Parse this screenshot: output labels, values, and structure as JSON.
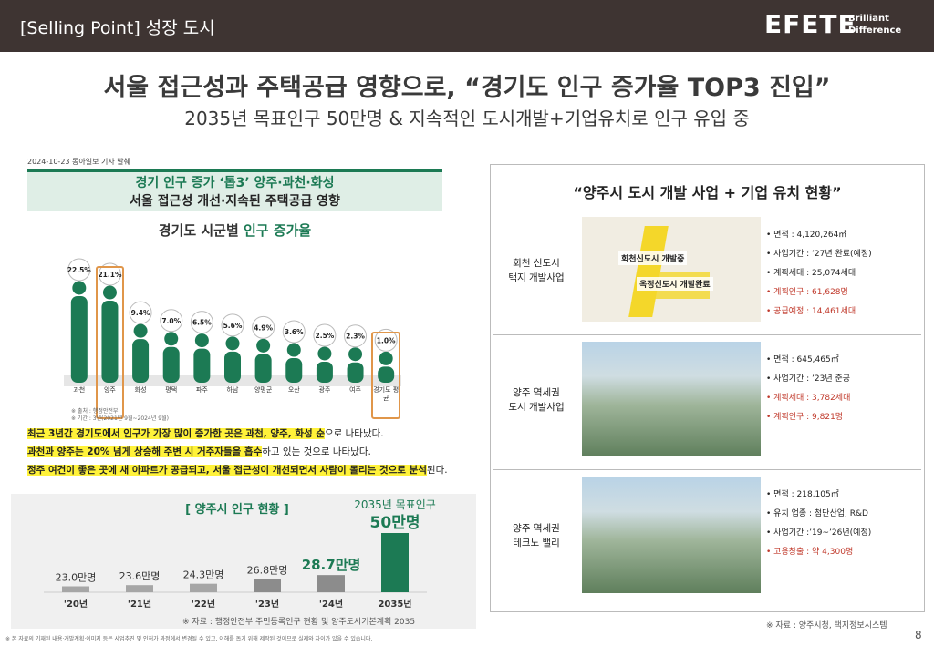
{
  "header": {
    "section": "[Selling Point] 성장 도시",
    "logo": "EFETE",
    "logo_tagline": [
      "Brilliant",
      "Difference"
    ]
  },
  "title": "서울 접근성과 주택공급 영향으로, “경기도 인구 증가율 TOP3 진입”",
  "subtitle": "2035년 목표인구 50만명 & 지속적인 도시개발+기업유치로 인구 유입 중",
  "article": {
    "source": "2024-10-23 동아일보 기사 발췌",
    "headline": [
      "경기 인구 증가 ‘톱3’ 양주·과천·화성",
      "서울 접근성 개선·지속된 주택공급 영향"
    ],
    "notes": [
      "※ 출처 : 행정안전부",
      "※ 기간 : 3년(2021년 9월~2024년 9월)"
    ],
    "paragraph": [
      [
        {
          "text": "최근 3년간 경기도에서 인구가 가장 많이 증가한 곳은 과천, 양주, 화성 순",
          "mark": true
        },
        {
          "text": "으로 나타났다.",
          "mark": false
        }
      ],
      [
        {
          "text": "과천과 양주는 20% 넘게 상승해 주변 시 거주자들을 흡수",
          "mark": true
        },
        {
          "text": "하고 있는 것으로 나타났다.",
          "mark": false
        }
      ],
      [
        {
          "text": "정주 여건이 좋은 곳에 새 아파트가 공급되고, 서울 접근성이 개선되면서 사람이 몰리는 것으로 분석",
          "mark": true
        },
        {
          "text": "된다.",
          "mark": false
        }
      ]
    ]
  },
  "chart_data": [
    {
      "type": "pictogram",
      "title_parts": [
        "경기도 시군별 ",
        "인구 증가율"
      ],
      "categories": [
        "과천",
        "양주",
        "화성",
        "평택",
        "파주",
        "하남",
        "양평군",
        "오산",
        "광주",
        "여주",
        "경기도 평균"
      ],
      "values": [
        22.5,
        21.1,
        9.4,
        7.0,
        6.5,
        5.6,
        4.9,
        3.6,
        2.5,
        2.3,
        1.0
      ],
      "value_labels": [
        "22.5%",
        "21.1%",
        "9.4%",
        "7.0%",
        "6.5%",
        "5.6%",
        "4.9%",
        "3.6%",
        "2.5%",
        "2.3%",
        "1.0%"
      ],
      "color": "#1c7a54",
      "highlight": [
        1,
        10
      ],
      "highlight_color": "#e0964a"
    },
    {
      "type": "bar",
      "title": "[ 양주시 인구 현황 ]",
      "categories": [
        "'20년",
        "'21년",
        "'22년",
        "'23년",
        "'24년",
        "2035년"
      ],
      "values": [
        23.0,
        23.6,
        24.3,
        26.8,
        28.7,
        50
      ],
      "value_labels": [
        "23.0만명",
        "23.6만명",
        "24.3만명",
        "26.8만명",
        "28.7만명",
        "50만명"
      ],
      "colors": [
        "#a6a6a6",
        "#a6a6a6",
        "#a6a6a6",
        "#8c8c8c",
        "#8c8c8c",
        "#1c7a54"
      ],
      "emphasis": [
        4,
        5
      ],
      "annotation": {
        "index": 5,
        "text": "2035년 목표인구"
      },
      "ylim": [
        20,
        50
      ],
      "note": "※ 자료 : 행정안전부 주민등록인구 현황 및 양주도시기본계획 2035"
    }
  ],
  "projects": {
    "title": "“양주시 도시 개발 사업  + 기업 유치 현황”",
    "rows": [
      {
        "name": [
          "회천 신도시",
          "택지 개발사업"
        ],
        "map_labels": [
          "회천신도시 개발중",
          "옥정신도시 개발완료"
        ],
        "items": [
          {
            "text": "면적 : 4,120,264㎡",
            "accent": false
          },
          {
            "text": "사업기간 : ’27년 완료(예정)",
            "accent": false
          },
          {
            "text": "계획세대 : 25,074세대",
            "accent": false
          },
          {
            "text": "계획인구 : 61,628명",
            "accent": true
          },
          {
            "text": "공급예정 : 14,461세대",
            "accent": true
          }
        ]
      },
      {
        "name": [
          "양주 역세권",
          "도시 개발사업"
        ],
        "items": [
          {
            "text": "면적 : 645,465㎡",
            "accent": false
          },
          {
            "text": "사업기간 : ’23년 준공",
            "accent": false
          },
          {
            "text": "계획세대 : 3,782세대",
            "accent": true
          },
          {
            "text": "계획인구 : 9,821명",
            "accent": true
          }
        ]
      },
      {
        "name": [
          "양주 역세권",
          "테크노 밸리"
        ],
        "items": [
          {
            "text": "면적 : 218,105㎡",
            "accent": false
          },
          {
            "text": "유치 업종 : 첨단산업, R&D",
            "accent": false
          },
          {
            "text": "사업기간 :’19~’26년(예정)",
            "accent": false
          },
          {
            "text": "고용창출 : 약 4,300명",
            "accent": true
          }
        ]
      }
    ],
    "source": "※ 자료 : 양주시청, 택지정보시스템"
  },
  "footnote": "※ 본 자료의 기재된 내용·개발계획·이미지 등은 사업추진 및 인허가 과정에서 변경될 수 있고, 이해를 돕기 위해 제작된 것이므로 실제와 차이가 있을 수 있습니다.",
  "page_number": "8"
}
